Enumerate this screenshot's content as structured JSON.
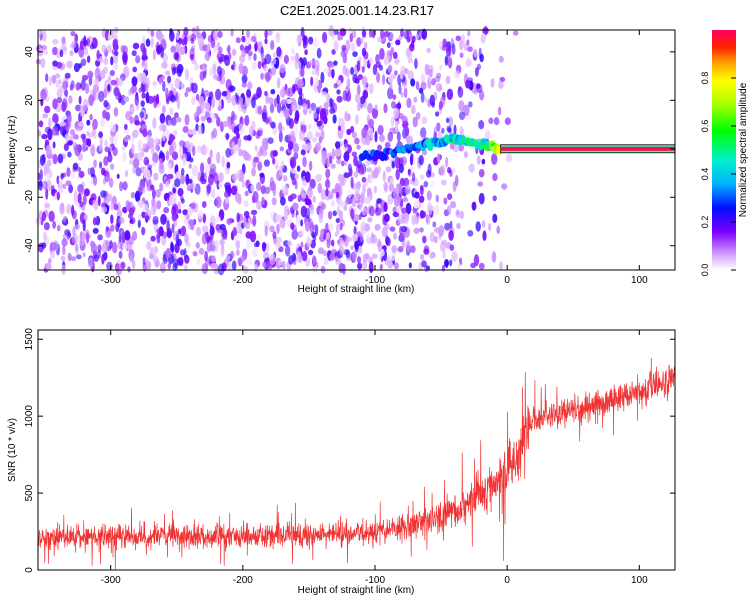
{
  "title": "C2E1.2025.001.14.23.R17",
  "chart_data": [
    {
      "type": "heatmap",
      "xlabel": "Height of straight line (km)",
      "ylabel": "Frequency (Hz)",
      "xlim": [
        -355,
        127
      ],
      "ylim": [
        -50,
        49
      ],
      "x_ticks": [
        -300,
        -200,
        -100,
        0,
        100
      ],
      "y_ticks": [
        -40,
        -20,
        0,
        20,
        40
      ],
      "colorbar": {
        "label": "Normalized spectral amplitude",
        "range": [
          0,
          1
        ],
        "ticks": [
          0.0,
          0.2,
          0.4,
          0.6,
          0.8
        ],
        "tick_labels": [
          "0.0",
          "0.2",
          "0.4",
          "0.6",
          "0.8"
        ]
      },
      "features": {
        "noise_x_range": [
          -355,
          -5
        ],
        "noise_amplitude_typical": 0.1,
        "signal_onset_x": -110,
        "signal_line_freq_hz": 0,
        "signal_line_x_range": [
          -5,
          127
        ],
        "signal_line_amplitude": 0.98,
        "signal_ridge": [
          {
            "x": -110,
            "f": -3,
            "a": 0.25
          },
          {
            "x": -90,
            "f": -2,
            "a": 0.3
          },
          {
            "x": -70,
            "f": 1,
            "a": 0.35
          },
          {
            "x": -55,
            "f": 2,
            "a": 0.4
          },
          {
            "x": -42,
            "f": 4,
            "a": 0.45
          },
          {
            "x": -30,
            "f": 3,
            "a": 0.5
          },
          {
            "x": -15,
            "f": 1,
            "a": 0.55
          },
          {
            "x": -5,
            "f": 0,
            "a": 0.7
          }
        ]
      }
    },
    {
      "type": "line",
      "xlabel": "Height of straight line (km)",
      "ylabel": "SNR (10 * v/v)",
      "xlim": [
        -355,
        127
      ],
      "ylim": [
        0,
        1560
      ],
      "x_ticks": [
        -300,
        -200,
        -100,
        0,
        100
      ],
      "y_ticks": [
        0,
        500,
        1000,
        1500
      ],
      "series": [
        {
          "color": "#f03232",
          "envelope": [
            {
              "x": -355,
              "mean": 215,
              "spread": 100
            },
            {
              "x": -250,
              "mean": 220,
              "spread": 100
            },
            {
              "x": -150,
              "mean": 225,
              "spread": 105
            },
            {
              "x": -100,
              "mean": 245,
              "spread": 110
            },
            {
              "x": -60,
              "mean": 310,
              "spread": 130
            },
            {
              "x": -30,
              "mean": 430,
              "spread": 170
            },
            {
              "x": -10,
              "mean": 560,
              "spread": 220
            },
            {
              "x": 5,
              "mean": 700,
              "spread": 280
            },
            {
              "x": 12,
              "mean": 860,
              "spread": 260
            },
            {
              "x": 20,
              "mean": 980,
              "spread": 130
            },
            {
              "x": 60,
              "mean": 1060,
              "spread": 120
            },
            {
              "x": 100,
              "mean": 1160,
              "spread": 125
            },
            {
              "x": 127,
              "mean": 1240,
              "spread": 130
            }
          ]
        }
      ]
    }
  ]
}
